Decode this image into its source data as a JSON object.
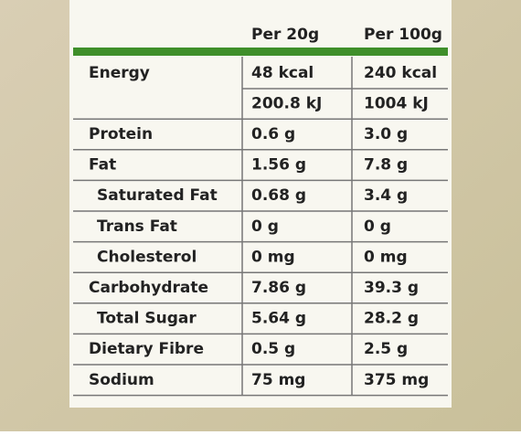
{
  "header": {
    "columns": [
      "Per 20g",
      "Per 100g"
    ]
  },
  "table": {
    "rows": [
      {
        "label": "Energy",
        "values": [
          [
            "48 kcal",
            "200.8 kJ"
          ],
          [
            "240 kcal",
            "1004 kJ"
          ]
        ]
      },
      {
        "label": "Protein",
        "values": [
          [
            "0.6 g"
          ],
          [
            "3.0 g"
          ]
        ]
      },
      {
        "label": "Fat",
        "values": [
          [
            "1.56 g"
          ],
          [
            "7.8 g"
          ]
        ]
      },
      {
        "label": "Saturated Fat",
        "indent": true,
        "values": [
          [
            "0.68 g"
          ],
          [
            "3.4 g"
          ]
        ]
      },
      {
        "label": "Trans Fat",
        "indent": true,
        "values": [
          [
            "0 g"
          ],
          [
            "0 g"
          ]
        ]
      },
      {
        "label": "Cholesterol",
        "indent": true,
        "values": [
          [
            "0 mg"
          ],
          [
            "0 mg"
          ]
        ]
      },
      {
        "label": "Carbohydrate",
        "values": [
          [
            "7.86 g"
          ],
          [
            "39.3 g"
          ]
        ]
      },
      {
        "label": "Total Sugar",
        "indent": true,
        "values": [
          [
            "5.64 g"
          ],
          [
            "28.2 g"
          ]
        ]
      },
      {
        "label": "Dietary Fibre",
        "values": [
          [
            "0.5 g"
          ],
          [
            "2.5 g"
          ]
        ]
      },
      {
        "label": "Sodium",
        "values": [
          [
            "75 mg"
          ],
          [
            "375 mg"
          ]
        ]
      }
    ]
  }
}
